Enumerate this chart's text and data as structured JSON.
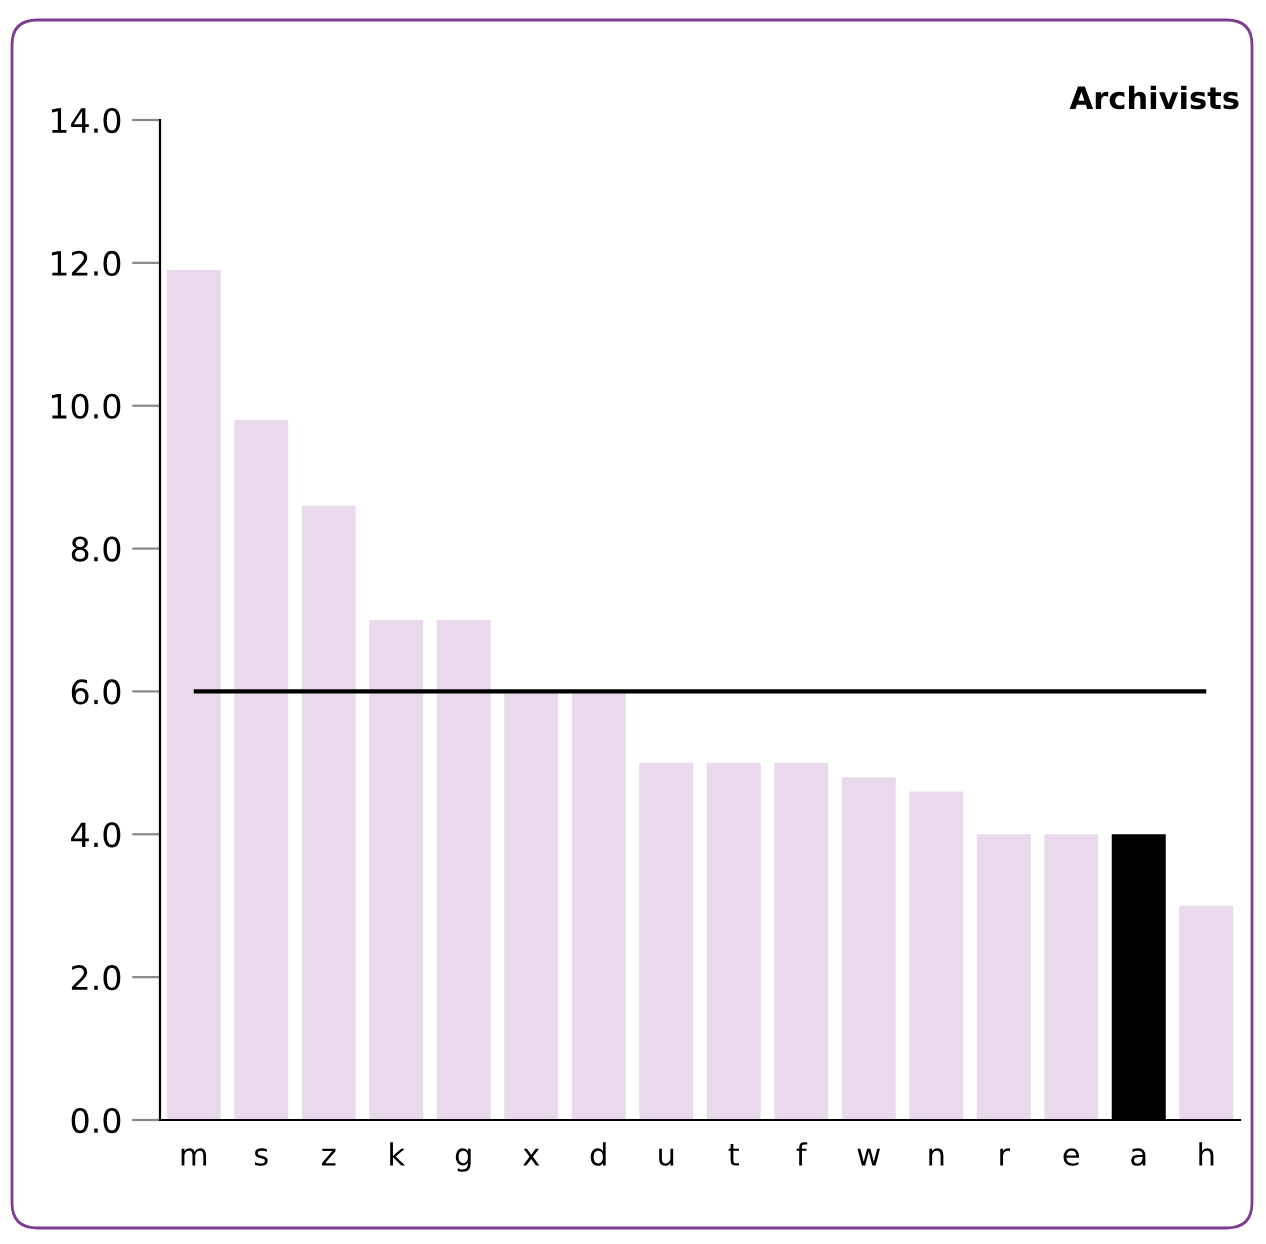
{
  "chart_data": {
    "type": "bar",
    "title": "Archivists",
    "categories": [
      "m",
      "s",
      "z",
      "k",
      "g",
      "x",
      "d",
      "u",
      "t",
      "f",
      "w",
      "n",
      "r",
      "e",
      "a",
      "h"
    ],
    "values": [
      11.9,
      9.8,
      8.6,
      7.0,
      7.0,
      6.0,
      6.0,
      5.0,
      5.0,
      5.0,
      4.8,
      4.6,
      4.0,
      4.0,
      4.0,
      3.0
    ],
    "colors": [
      "#ead9ec",
      "#ead9ec",
      "#ead9ec",
      "#ead9ec",
      "#ead9ec",
      "#ead9ec",
      "#ead9ec",
      "#ead9ec",
      "#ead9ec",
      "#ead9ec",
      "#ead9ec",
      "#ead9ec",
      "#ead9ec",
      "#ead9ec",
      "#000000",
      "#ead9ec"
    ],
    "ylim": [
      0,
      14
    ],
    "yticks": [
      {
        "value": 0,
        "label": "0.0"
      },
      {
        "value": 2,
        "label": "2.0"
      },
      {
        "value": 4,
        "label": "4.0"
      },
      {
        "value": 6,
        "label": "6.0"
      },
      {
        "value": 8,
        "label": "8.0"
      },
      {
        "value": 10,
        "label": "10.0"
      },
      {
        "value": 12,
        "label": "12.0"
      },
      {
        "value": 14,
        "label": "14.0"
      }
    ],
    "ref_lines": [
      {
        "axis": "y",
        "value": 6,
        "color": "#000000"
      }
    ],
    "grid": false
  }
}
